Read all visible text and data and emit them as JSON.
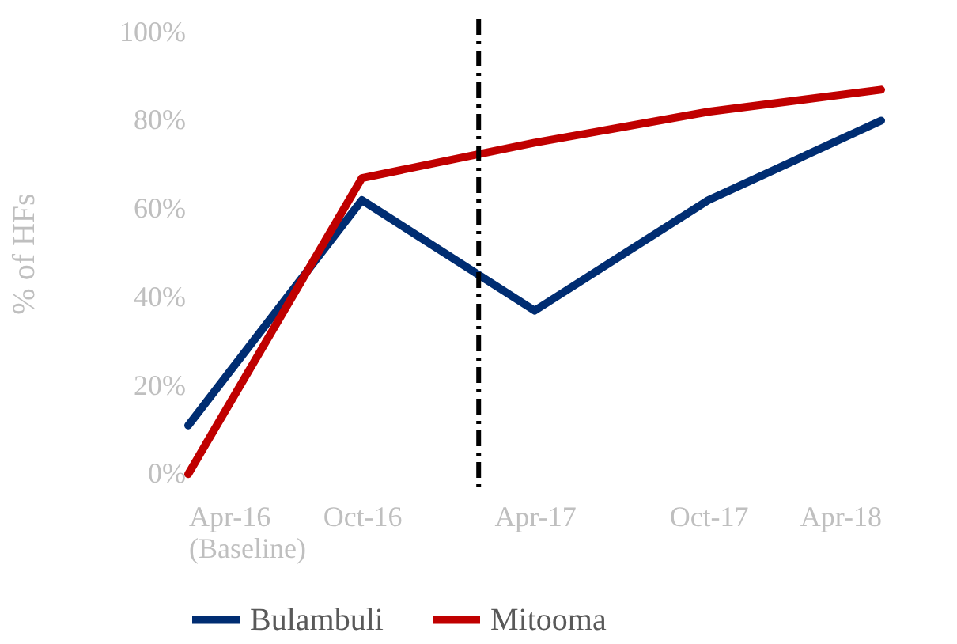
{
  "chart_data": {
    "type": "line",
    "ylabel": "% of HFs",
    "x": [
      "2016-04",
      "2016-10",
      "2017-04",
      "2017-10",
      "2018-04"
    ],
    "xlim": [
      "2016-04",
      "2018-04"
    ],
    "xticks": [
      {
        "value": "2016-04",
        "label": "Apr-16\n(Baseline)"
      },
      {
        "value": "2016-10",
        "label": "Oct-16"
      },
      {
        "value": "2017-04",
        "label": "Apr-17"
      },
      {
        "value": "2017-10",
        "label": "Oct-17"
      },
      {
        "value": "2018-04",
        "label": "Apr-18"
      }
    ],
    "ylim": [
      -3,
      103
    ],
    "yticks": [
      {
        "value": 0,
        "label": "0%"
      },
      {
        "value": 20,
        "label": "20%"
      },
      {
        "value": 40,
        "label": "40%"
      },
      {
        "value": 60,
        "label": "60%"
      },
      {
        "value": 80,
        "label": "80%"
      },
      {
        "value": 100,
        "label": "100%"
      }
    ],
    "series": [
      {
        "name": "Bulambuli",
        "color": "#002d72",
        "values": [
          11,
          62,
          37,
          62,
          80
        ]
      },
      {
        "name": "Mitooma",
        "color": "#c00000",
        "values": [
          0,
          67,
          75,
          82,
          87
        ]
      }
    ],
    "ref_lines": [
      {
        "axis": "x",
        "value": "2017-02",
        "color": "#000000",
        "line_style": "dashed"
      }
    ],
    "grid": false,
    "legend": "bottom",
    "marker": "none",
    "line_style": "solid"
  }
}
